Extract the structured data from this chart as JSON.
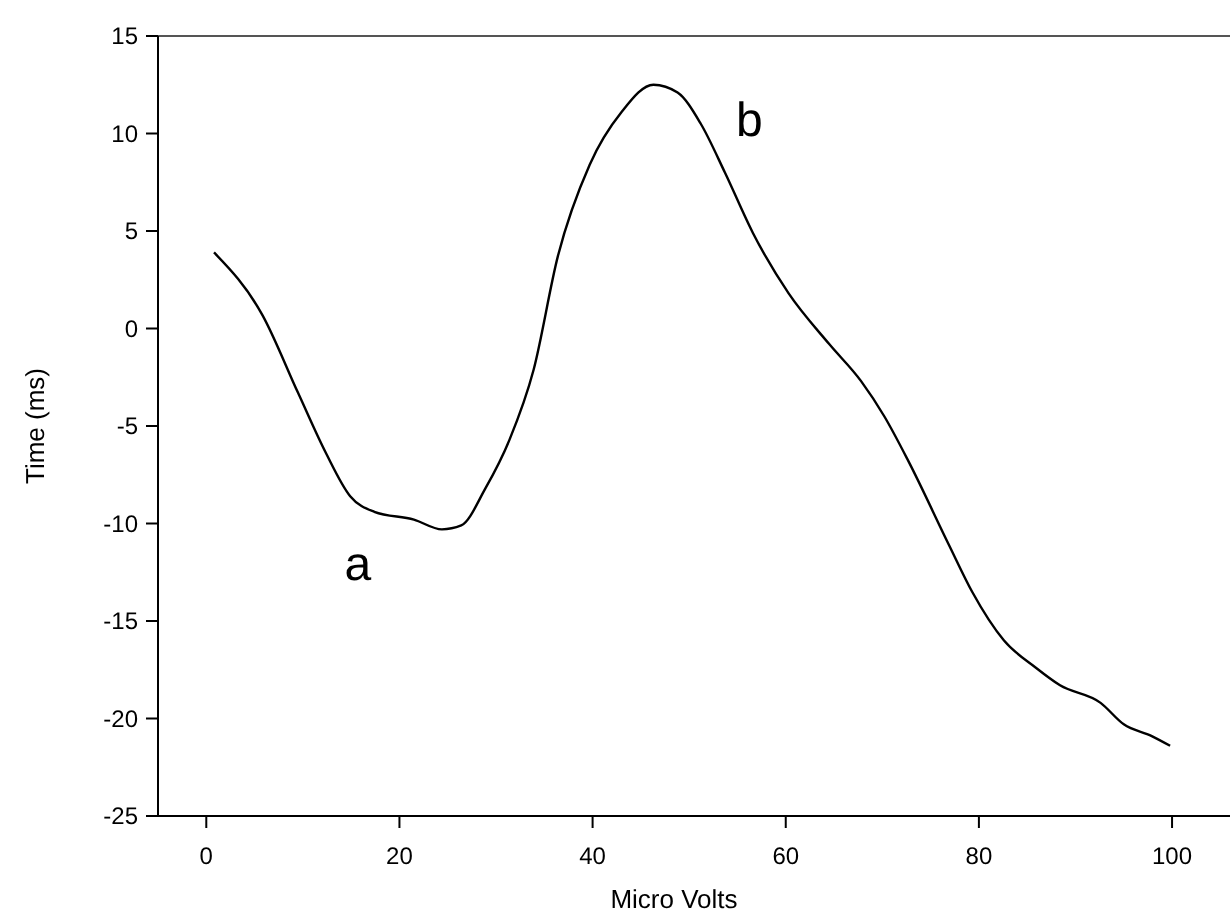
{
  "chart_data": {
    "type": "line",
    "xlabel": "Micro Volts",
    "ylabel": "Time (ms)",
    "xlim": [
      -5,
      106
    ],
    "xticks": [
      0,
      20,
      40,
      60,
      80,
      100
    ],
    "ylim": [
      -25,
      15
    ],
    "yticks": [
      -25,
      -20,
      -15,
      -10,
      -5,
      0,
      5,
      10,
      15
    ],
    "grid": false,
    "marker": "none",
    "line_style": "solid",
    "series": [
      {
        "color": "#000000",
        "x": [
          0.8,
          5.8,
          9.5,
          12.4,
          14.9,
          17.4,
          21.5,
          24.4,
          26.4,
          28.9,
          31.4,
          33.9,
          36.4,
          39.7,
          43,
          46.3,
          48.8,
          51.2,
          53.7,
          56.6,
          60.3,
          64.5,
          67.8,
          70.2,
          72.7,
          76.9,
          79.3,
          82.6,
          85.9,
          88.4,
          92.6,
          95,
          97.9,
          99.8
        ],
        "values": [
          3.9,
          0.7,
          -3.3,
          -6.4,
          -8.6,
          -9.4,
          -9.8,
          -10.3,
          -10.1,
          -8.2,
          -5.7,
          -2.1,
          3.7,
          8.4,
          11.1,
          12.5,
          12.1,
          10.5,
          8,
          4.9,
          1.8,
          -0.8,
          -2.7,
          -4.5,
          -6.8,
          -11.1,
          -13.5,
          -16,
          -17.4,
          -18.3,
          -19.2,
          -20.3,
          -20.9,
          -21.4
        ]
      }
    ],
    "annotations": [
      {
        "text": "a",
        "x": 24.4,
        "y": -10.3
      },
      {
        "text": "b",
        "x": 46.3,
        "y": 12.5
      }
    ]
  }
}
